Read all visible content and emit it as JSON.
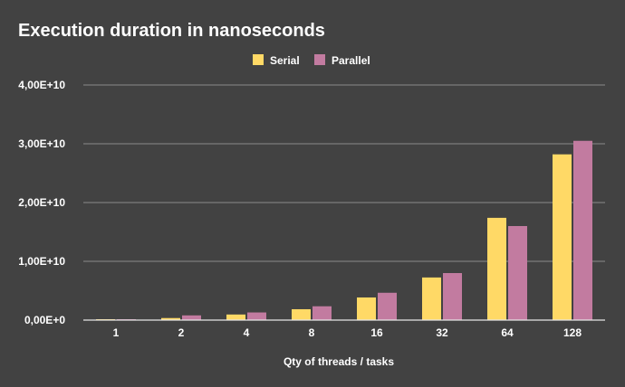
{
  "chart_data": {
    "type": "bar",
    "title": "Execution duration in nanoseconds",
    "xlabel": "Qty of threads / tasks",
    "ylabel": "",
    "categories": [
      "1",
      "2",
      "4",
      "8",
      "16",
      "32",
      "64",
      "128"
    ],
    "series": [
      {
        "name": "Serial",
        "color": "#ffd966",
        "values": [
          150000000.0,
          350000000.0,
          950000000.0,
          1850000000.0,
          3850000000.0,
          7250000000.0,
          17400000000.0,
          28200000000.0
        ]
      },
      {
        "name": "Parallel",
        "color": "#c27ba0",
        "values": [
          150000000.0,
          800000000.0,
          1300000000.0,
          2350000000.0,
          4650000000.0,
          8000000000.0,
          16000000000.0,
          30500000000.0
        ]
      }
    ],
    "ylim": [
      0,
      40000000000
    ],
    "yticks": [
      {
        "value": 0,
        "label": "0,00E+0"
      },
      {
        "value": 10000000000,
        "label": "1,00E+10"
      },
      {
        "value": 20000000000,
        "label": "2,00E+10"
      },
      {
        "value": 30000000000,
        "label": "3,00E+10"
      },
      {
        "value": 40000000000,
        "label": "4,00E+10"
      }
    ],
    "grid": true,
    "legend_position": "top-center"
  },
  "colors": {
    "background": "#424242",
    "gridline": "#8a8a8a",
    "text": "#ffffff"
  }
}
